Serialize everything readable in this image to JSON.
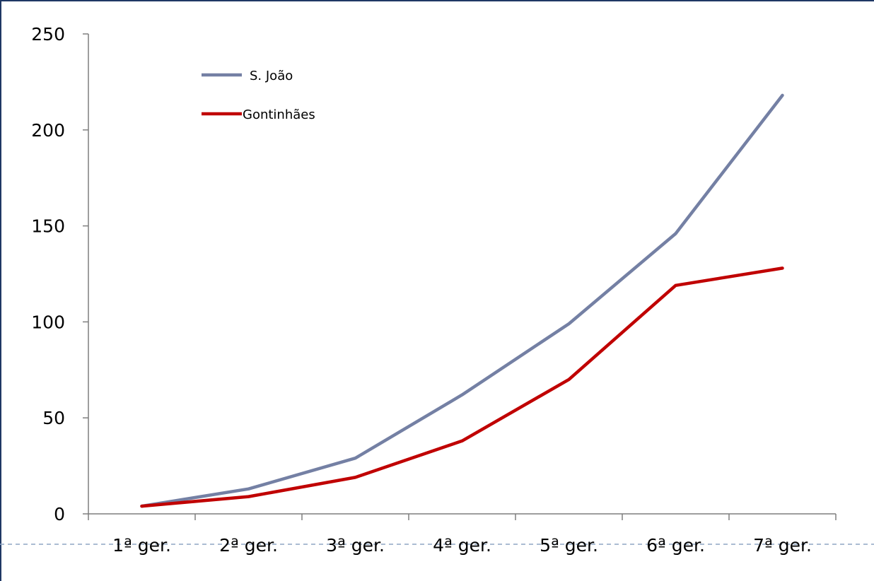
{
  "chart_data": {
    "type": "line",
    "categories": [
      "1ª ger.",
      "2ª ger.",
      "3ª ger.",
      "4ª ger.",
      "5ª ger.",
      "6ª ger.",
      "7ª ger."
    ],
    "series": [
      {
        "name": "S. João",
        "color": "#7480a4",
        "values": [
          4,
          13,
          29,
          62,
          99,
          146,
          218
        ]
      },
      {
        "name": "Gontinhães",
        "color": "#c00000",
        "values": [
          4,
          9,
          19,
          38,
          70,
          119,
          128
        ]
      }
    ],
    "y_ticks": [
      "0",
      "50",
      "100",
      "150",
      "200",
      "250"
    ],
    "ylim": [
      0,
      250
    ],
    "legend_position": "top-left",
    "grid": false
  }
}
